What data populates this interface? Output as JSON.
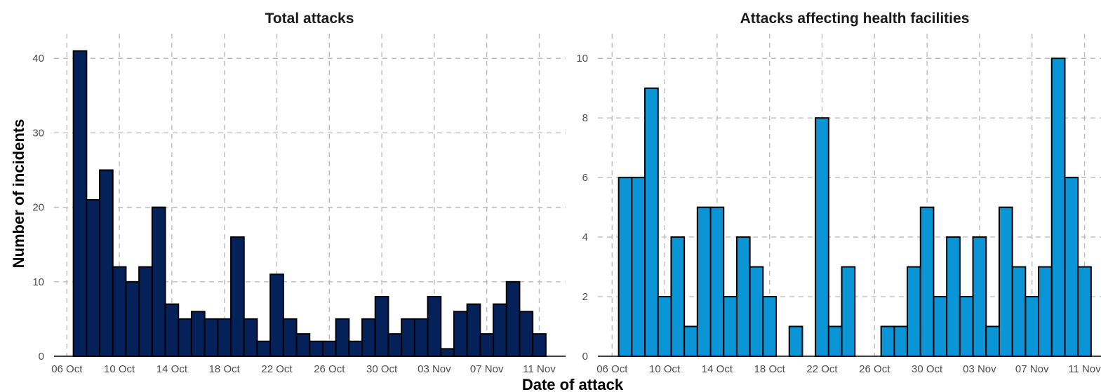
{
  "xlabel": "Date of attack",
  "ylabel": "Number of incidents",
  "chart_data": [
    {
      "type": "bar",
      "title": "Total attacks",
      "xlabel": "Date of attack",
      "ylabel": "Number of incidents",
      "color": "#04215a",
      "x_start": "2023-10-07",
      "x_ticks": [
        "06 Oct",
        "10 Oct",
        "14 Oct",
        "18 Oct",
        "22 Oct",
        "26 Oct",
        "30 Oct",
        "03 Nov",
        "07 Nov",
        "11 Nov"
      ],
      "y_ticks": [
        0,
        10,
        20,
        30,
        40
      ],
      "ylim": [
        0,
        42
      ],
      "grid": true,
      "categories": [
        "2023-10-07",
        "2023-10-08",
        "2023-10-09",
        "2023-10-10",
        "2023-10-11",
        "2023-10-12",
        "2023-10-13",
        "2023-10-14",
        "2023-10-15",
        "2023-10-16",
        "2023-10-17",
        "2023-10-18",
        "2023-10-19",
        "2023-10-20",
        "2023-10-21",
        "2023-10-22",
        "2023-10-23",
        "2023-10-24",
        "2023-10-25",
        "2023-10-26",
        "2023-10-27",
        "2023-10-28",
        "2023-10-29",
        "2023-10-30",
        "2023-10-31",
        "2023-11-01",
        "2023-11-02",
        "2023-11-03",
        "2023-11-04",
        "2023-11-05",
        "2023-11-06",
        "2023-11-07",
        "2023-11-08",
        "2023-11-09",
        "2023-11-10",
        "2023-11-11"
      ],
      "values": [
        41,
        21,
        25,
        12,
        10,
        12,
        20,
        7,
        5,
        6,
        5,
        5,
        16,
        5,
        2,
        11,
        5,
        3,
        2,
        2,
        5,
        2,
        5,
        8,
        3,
        5,
        5,
        8,
        1,
        6,
        7,
        3,
        7,
        10,
        6,
        3
      ]
    },
    {
      "type": "bar",
      "title": "Attacks affecting health facilities",
      "xlabel": "Date of attack",
      "ylabel": "Number of incidents",
      "color": "#0a96d6",
      "x_start": "2023-10-07",
      "x_ticks": [
        "06 Oct",
        "10 Oct",
        "14 Oct",
        "18 Oct",
        "22 Oct",
        "26 Oct",
        "30 Oct",
        "03 Nov",
        "07 Nov",
        "11 Nov"
      ],
      "y_ticks": [
        0,
        2,
        4,
        6,
        8,
        10
      ],
      "ylim": [
        0,
        10.5
      ],
      "grid": true,
      "categories": [
        "2023-10-07",
        "2023-10-08",
        "2023-10-09",
        "2023-10-10",
        "2023-10-11",
        "2023-10-12",
        "2023-10-13",
        "2023-10-14",
        "2023-10-15",
        "2023-10-16",
        "2023-10-17",
        "2023-10-18",
        "2023-10-19",
        "2023-10-20",
        "2023-10-21",
        "2023-10-22",
        "2023-10-23",
        "2023-10-24",
        "2023-10-25",
        "2023-10-26",
        "2023-10-27",
        "2023-10-28",
        "2023-10-29",
        "2023-10-30",
        "2023-10-31",
        "2023-11-01",
        "2023-11-02",
        "2023-11-03",
        "2023-11-04",
        "2023-11-05",
        "2023-11-06",
        "2023-11-07",
        "2023-11-08",
        "2023-11-09",
        "2023-11-10",
        "2023-11-11"
      ],
      "values": [
        6,
        6,
        9,
        2,
        4,
        1,
        5,
        5,
        2,
        4,
        3,
        2,
        0,
        1,
        0,
        8,
        1,
        3,
        0,
        0,
        1,
        1,
        3,
        5,
        2,
        4,
        2,
        4,
        1,
        5,
        3,
        2,
        3,
        10,
        6,
        3
      ]
    }
  ]
}
